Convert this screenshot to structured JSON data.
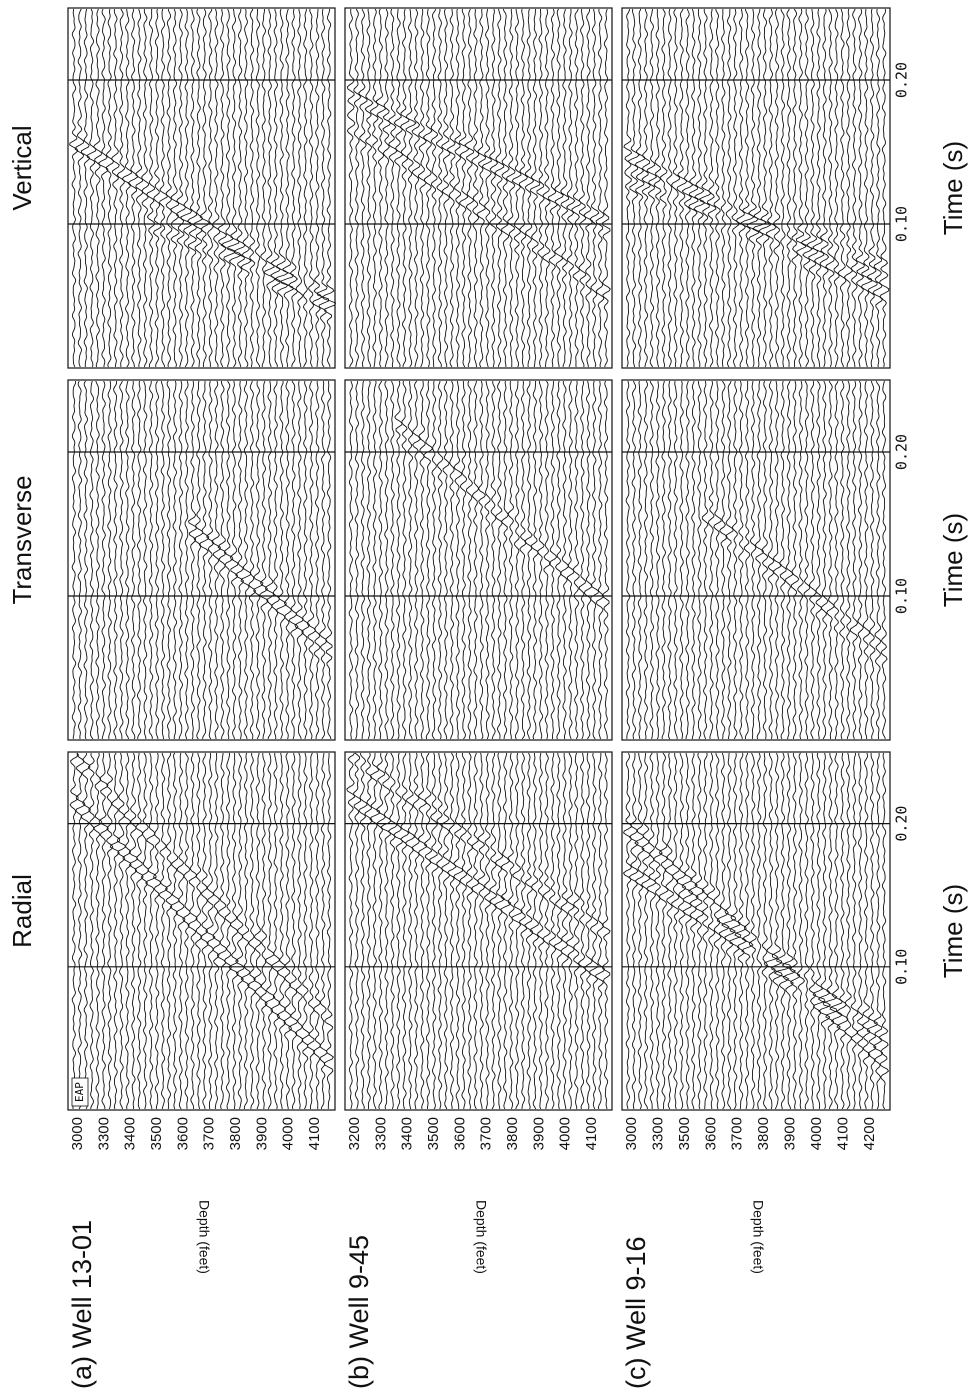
{
  "columns": [
    "Radial",
    "Transverse",
    "Vertical"
  ],
  "rows": [
    {
      "label": "(a) Well 13-01",
      "depth_ticks": [
        3000,
        3300,
        3400,
        3500,
        3600,
        3700,
        3800,
        3900,
        4000,
        4100
      ]
    },
    {
      "label": "(b) Well 9-45",
      "depth_ticks": [
        3200,
        3300,
        3400,
        3500,
        3600,
        3700,
        3800,
        3900,
        4000,
        4100
      ]
    },
    {
      "label": "(c) Well 9-16",
      "depth_ticks": [
        3000,
        3300,
        3500,
        3600,
        3700,
        3800,
        3900,
        4000,
        4100,
        4200
      ]
    }
  ],
  "depth_axis_label": "Depth (feet)",
  "time_ticks": [
    "0.10",
    "0.20"
  ],
  "time_axis_label": "Time (s)",
  "panel_note": "EAP"
}
